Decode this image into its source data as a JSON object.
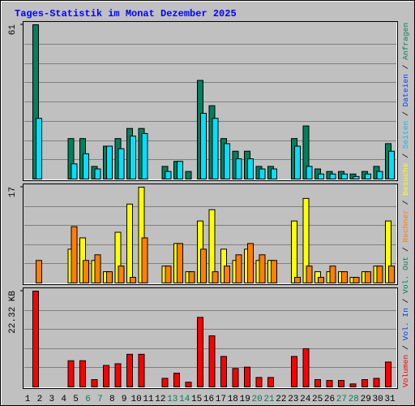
{
  "chart_data": {
    "type": "bar",
    "title": "Tages-Statistik im Monat Dezember 2025",
    "categories": [
      "1",
      "2",
      "3",
      "4",
      "5",
      "6",
      "7",
      "8",
      "9",
      "10",
      "11",
      "12",
      "13",
      "14",
      "15",
      "16",
      "17",
      "18",
      "19",
      "20",
      "21",
      "22",
      "23",
      "24",
      "25",
      "26",
      "27",
      "28",
      "29",
      "30",
      "31"
    ],
    "category_colors": [
      "#000000",
      "#000000",
      "#000000",
      "#000000",
      "#000000",
      "#00805c",
      "#00805c",
      "#000000",
      "#000000",
      "#000000",
      "#000000",
      "#000000",
      "#00805c",
      "#00805c",
      "#000000",
      "#000000",
      "#000000",
      "#000000",
      "#000000",
      "#00805c",
      "#00805c",
      "#000000",
      "#000000",
      "#000000",
      "#000000",
      "#000000",
      "#00805c",
      "#00805c",
      "#000000",
      "#000000",
      "#000000"
    ],
    "panels": [
      {
        "ylim": [
          0,
          61
        ],
        "yticks": [
          61
        ],
        "legend": [
          {
            "name": "Anfragen",
            "color": "#00805c"
          },
          {
            "name": "Dateien",
            "color": "#0040ff"
          },
          {
            "name": "Seiten",
            "color": "#00c0ff"
          }
        ],
        "series": [
          {
            "color": "#00805c",
            "values": [
              61,
              0,
              0,
              16,
              16,
              5,
              13,
              16,
              20,
              20,
              0,
              5,
              7,
              3,
              39,
              29,
              16,
              11,
              11,
              5,
              5,
              0,
              16,
              21,
              4,
              3,
              3,
              2,
              3,
              5,
              14
            ]
          },
          {
            "color": "#00e0ff",
            "values": [
              24,
              0,
              0,
              6,
              10,
              4,
              13,
              12,
              17,
              18,
              0,
              3,
              7,
              0,
              26,
              24,
              14,
              8,
              8,
              4,
              4,
              0,
              13,
              5,
              2,
              2,
              2,
              1,
              2,
              3,
              11
            ]
          }
        ]
      },
      {
        "ylim": [
          0,
          17
        ],
        "yticks": [
          17
        ],
        "legend": [
          {
            "name": "Besuche",
            "color": "#ffff00"
          },
          {
            "name": "Rechner",
            "color": "#ff8000"
          }
        ],
        "series": [
          {
            "color": "#ffff00",
            "values": [
              0,
              0,
              0,
              6,
              8,
              4,
              2,
              9,
              14,
              17,
              0,
              3,
              7,
              2,
              11,
              13,
              6,
              4,
              6,
              4,
              4,
              0,
              11,
              15,
              2,
              2,
              2,
              1,
              2,
              3,
              11
            ]
          },
          {
            "color": "#ff8000",
            "values": [
              4,
              0,
              0,
              10,
              4,
              5,
              2,
              3,
              1,
              8,
              0,
              3,
              7,
              2,
              6,
              2,
              3,
              5,
              7,
              5,
              4,
              0,
              1,
              3,
              1,
              3,
              2,
              1,
              2,
              3,
              3
            ]
          }
        ]
      },
      {
        "ylim": [
          0,
          22.32
        ],
        "yticks": [
          {
            "value": 22.32,
            "label": "22.32 KB"
          }
        ],
        "legend": [
          {
            "name": "Vol. Out",
            "color": "#00805c"
          },
          {
            "name": "Vol. In",
            "color": "#0040ff"
          },
          {
            "name": "Volumen",
            "color": "#ff0000"
          }
        ],
        "series": [
          {
            "color": "#ff0000",
            "values": [
              22.32,
              0,
              0,
              6.1,
              6.1,
              1.7,
              5.0,
              5.4,
              7.6,
              7.6,
              0,
              2.0,
              3.2,
              1.1,
              16.2,
              11.9,
              7.1,
              4.3,
              4.6,
              2.2,
              2.2,
              0,
              7.1,
              8.9,
              1.7,
              1.5,
              1.5,
              0.7,
              1.7,
              2.0,
              5.8
            ]
          }
        ]
      }
    ]
  }
}
